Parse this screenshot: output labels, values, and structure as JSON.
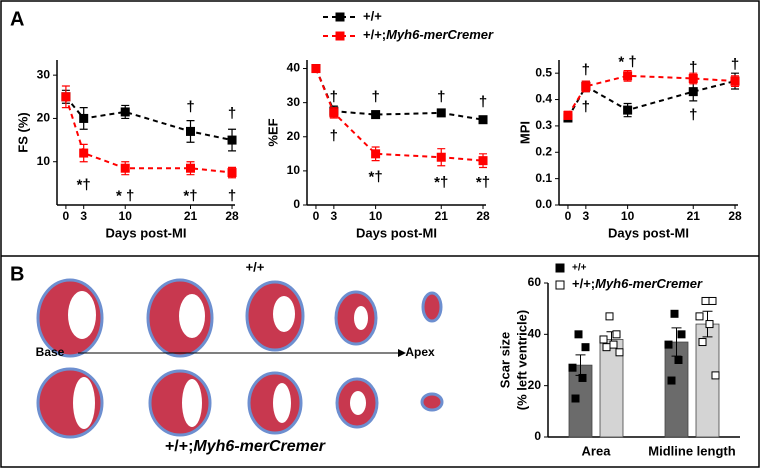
{
  "panels": [
    "A",
    "B"
  ],
  "panel_b": {
    "top_label": "+/+",
    "bottom_label": "+/+;Myh6-merCremer",
    "base": "Base",
    "apex": "Apex"
  },
  "chart_data": [
    {
      "type": "line",
      "ylabel": "FS (%)",
      "xlabel": "Days post-MI",
      "x": [
        0,
        3,
        10,
        21,
        28
      ],
      "xlim": [
        -1.5,
        28.5
      ],
      "xticks": [
        0,
        3,
        10,
        21,
        28
      ],
      "ylim": [
        0,
        33.5
      ],
      "yticks": [
        10,
        20,
        30
      ],
      "series": [
        {
          "name": "+/+",
          "color": "#000000",
          "values": [
            25,
            20,
            21.5,
            17,
            15
          ],
          "errors": [
            1.5,
            2.5,
            1.5,
            2.5,
            2.5
          ]
        },
        {
          "name": "+/+;Myh6-merCremer",
          "color": "#ff0000",
          "values": [
            25,
            12,
            8.5,
            8.5,
            7.5
          ],
          "errors": [
            2.5,
            2,
            1.5,
            1.5,
            1.2
          ]
        }
      ],
      "annotations": [
        {
          "x": 3,
          "y": 4.5,
          "text": "*†"
        },
        {
          "x": 10,
          "y": 2,
          "text": "* †"
        },
        {
          "x": 21,
          "y": 2,
          "text": "*†"
        },
        {
          "x": 28,
          "y": 2,
          "text": "†"
        },
        {
          "x": 21,
          "y": 22.5,
          "text": "†"
        },
        {
          "x": 28,
          "y": 21,
          "text": "†"
        }
      ]
    },
    {
      "type": "line",
      "ylabel": "%EF",
      "xlabel": "Days post-MI",
      "x": [
        0,
        3,
        10,
        21,
        28
      ],
      "xlim": [
        -1.5,
        28.5
      ],
      "xticks": [
        0,
        3,
        10,
        21,
        28
      ],
      "ylim": [
        0,
        42.5
      ],
      "yticks": [
        0,
        10,
        20,
        30,
        40
      ],
      "series": [
        {
          "name": "+/+",
          "color": "#000000",
          "values": [
            40,
            27.5,
            26.5,
            27,
            25
          ],
          "errors": [
            1,
            1.5,
            1,
            1,
            1
          ]
        },
        {
          "name": "+/+;Myh6-merCremer",
          "color": "#ff0000",
          "values": [
            40,
            27,
            15,
            14,
            13
          ],
          "errors": [
            1,
            1.5,
            2,
            2.5,
            2
          ]
        }
      ],
      "annotations": [
        {
          "x": 3,
          "y": 31.5,
          "text": "†"
        },
        {
          "x": 10,
          "y": 31.5,
          "text": "†"
        },
        {
          "x": 21,
          "y": 31.5,
          "text": "†"
        },
        {
          "x": 28,
          "y": 30,
          "text": "†"
        },
        {
          "x": 3,
          "y": 20,
          "text": "†"
        },
        {
          "x": 10,
          "y": 8,
          "text": "*†"
        },
        {
          "x": 21,
          "y": 6.5,
          "text": "*†"
        },
        {
          "x": 28,
          "y": 6.5,
          "text": "*†"
        }
      ]
    },
    {
      "type": "line",
      "ylabel": "MPI",
      "xlabel": "Days post-MI",
      "x": [
        0,
        3,
        10,
        21,
        28
      ],
      "xlim": [
        -1.5,
        28.5
      ],
      "xticks": [
        0,
        3,
        10,
        21,
        28
      ],
      "ylim": [
        0,
        0.55
      ],
      "yticks": [
        {
          "value": 0,
          "label": "0.0"
        },
        0.1,
        0.2,
        0.3,
        0.4,
        0.5
      ],
      "series": [
        {
          "name": "+/+",
          "color": "#000000",
          "values": [
            0.33,
            0.45,
            0.36,
            0.43,
            0.47
          ],
          "errors": [
            0.015,
            0.02,
            0.025,
            0.035,
            0.03
          ]
        },
        {
          "name": "+/+;Myh6-merCremer",
          "color": "#ff0000",
          "values": [
            0.34,
            0.45,
            0.49,
            0.48,
            0.47
          ],
          "errors": [
            0.015,
            0.02,
            0.02,
            0.02,
            0.02
          ]
        }
      ],
      "annotations": [
        {
          "x": 3,
          "y": 0.51,
          "text": "†"
        },
        {
          "x": 3,
          "y": 0.37,
          "text": "†"
        },
        {
          "x": 10,
          "y": 0.54,
          "text": "* †"
        },
        {
          "x": 21,
          "y": 0.52,
          "text": "†"
        },
        {
          "x": 21,
          "y": 0.34,
          "text": "†"
        },
        {
          "x": 28,
          "y": 0.53,
          "text": "†"
        }
      ]
    },
    {
      "type": "bar",
      "ylabel": [
        "Scar size",
        "(% left ventricle)"
      ],
      "categories": [
        "Area",
        "Midline length"
      ],
      "ylim": [
        0,
        60
      ],
      "yticks": [
        0,
        20,
        40,
        60
      ],
      "series": [
        {
          "name": "+/+",
          "color": "#6b6b6b",
          "marker_fill": "#000000",
          "values": [
            28,
            37
          ],
          "errors": [
            4,
            5.5
          ],
          "points": [
            [
              40,
              35,
              27,
              23,
              15
            ],
            [
              48,
              40,
              36,
              30,
              22
            ]
          ]
        },
        {
          "name": "+/+;Myh6-merCremer",
          "color": "#d4d4d4",
          "marker_fill": "#ffffff",
          "values": [
            38,
            44
          ],
          "errors": [
            3,
            5
          ],
          "points": [
            [
              47,
              40,
              38,
              36,
              35,
              33
            ],
            [
              53,
              53,
              47,
              44,
              37,
              24
            ]
          ]
        }
      ]
    }
  ]
}
